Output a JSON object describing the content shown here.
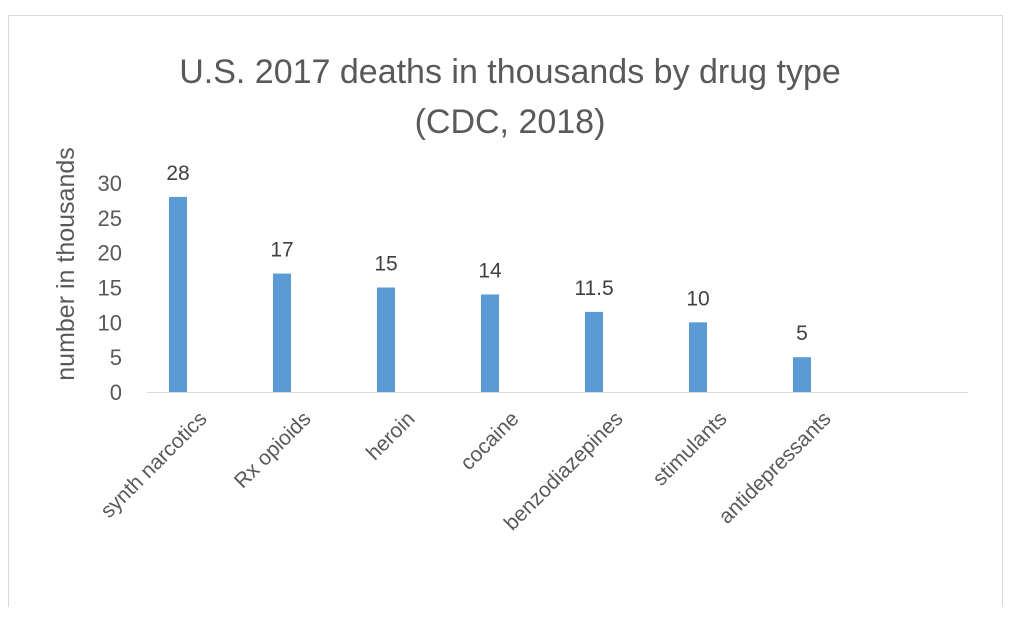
{
  "chart_data": {
    "type": "bar",
    "title": "U.S. 2017 deaths in thousands by drug type\n(CDC, 2018)",
    "xlabel": "",
    "ylabel": "number in thousands",
    "categories": [
      "synth narcotics",
      "Rx opioids",
      "heroin",
      "cocaine",
      "benzodiazepines",
      "stimulants",
      "antidepressants"
    ],
    "values": [
      28,
      17,
      15,
      14,
      11.5,
      10,
      5
    ],
    "data_labels": [
      "28",
      "17",
      "15",
      "14",
      "11.5",
      "10",
      "5"
    ],
    "y_ticks": [
      0,
      5,
      10,
      15,
      20,
      25,
      30
    ],
    "ylim": [
      0,
      30
    ],
    "grid": false,
    "legend": "none",
    "bar_color": "#5b9bd5"
  }
}
